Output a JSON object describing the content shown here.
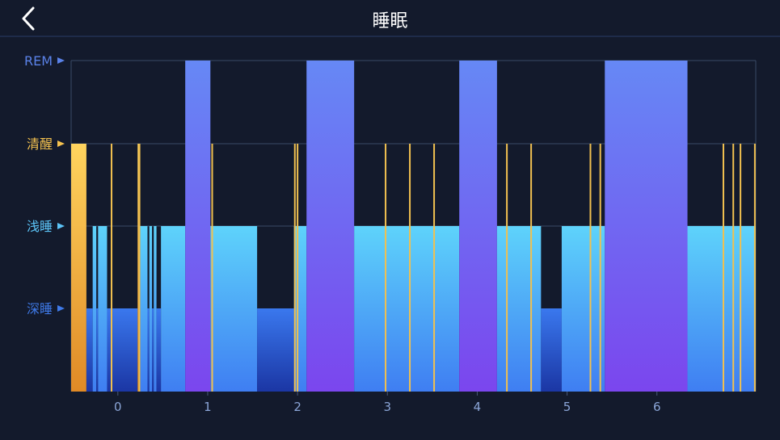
{
  "header": {
    "title": "睡眠",
    "back_icon": "chevron-left-icon"
  },
  "colors": {
    "background": "#131a2c",
    "awake": "#f5c24f",
    "rem": "#6a84f5",
    "light": "#5cc4f7",
    "deep": "#2f66e0",
    "grid": "#3a4a66"
  },
  "chart_data": {
    "type": "bar",
    "stage_levels": [
      {
        "name": "REM",
        "level": 4,
        "color": "#5a82e8"
      },
      {
        "name": "清醒",
        "level": 3,
        "color": "#f5c24f"
      },
      {
        "name": "浅睡",
        "level": 2,
        "color": "#5cc4f7"
      },
      {
        "name": "深睡",
        "level": 1,
        "color": "#3f7ae8"
      }
    ],
    "xlim": [
      -0.52,
      7.1
    ],
    "x_ticks": [
      0,
      1,
      2,
      3,
      4,
      5,
      6
    ],
    "segments": [
      {
        "start": -0.52,
        "end": -0.35,
        "stage": "awake"
      },
      {
        "start": -0.35,
        "end": -0.28,
        "stage": "deep"
      },
      {
        "start": -0.28,
        "end": -0.24,
        "stage": "light"
      },
      {
        "start": -0.24,
        "end": -0.22,
        "stage": "deep"
      },
      {
        "start": -0.22,
        "end": -0.12,
        "stage": "light"
      },
      {
        "start": -0.12,
        "end": -0.06,
        "stage": "deep"
      },
      {
        "start": -0.06,
        "end": 0.22,
        "stage": "deep"
      },
      {
        "start": 0.22,
        "end": 0.25,
        "stage": "awake"
      },
      {
        "start": 0.25,
        "end": 0.33,
        "stage": "light"
      },
      {
        "start": 0.33,
        "end": 0.35,
        "stage": "deep"
      },
      {
        "start": 0.35,
        "end": 0.38,
        "stage": "light"
      },
      {
        "start": 0.38,
        "end": 0.4,
        "stage": "deep"
      },
      {
        "start": 0.4,
        "end": 0.43,
        "stage": "light"
      },
      {
        "start": 0.43,
        "end": 0.48,
        "stage": "deep"
      },
      {
        "start": 0.48,
        "end": 0.51,
        "stage": "light"
      },
      {
        "start": 0.51,
        "end": 0.75,
        "stage": "light"
      },
      {
        "start": 0.75,
        "end": 1.03,
        "stage": "rem"
      },
      {
        "start": 1.03,
        "end": 1.55,
        "stage": "light"
      },
      {
        "start": 1.55,
        "end": 1.96,
        "stage": "deep"
      },
      {
        "start": 1.96,
        "end": 2.1,
        "stage": "light"
      },
      {
        "start": 2.1,
        "end": 2.63,
        "stage": "rem"
      },
      {
        "start": 2.63,
        "end": 3.8,
        "stage": "light"
      },
      {
        "start": 3.8,
        "end": 4.22,
        "stage": "rem"
      },
      {
        "start": 4.22,
        "end": 4.71,
        "stage": "light"
      },
      {
        "start": 4.71,
        "end": 4.94,
        "stage": "deep"
      },
      {
        "start": 4.94,
        "end": 5.42,
        "stage": "light"
      },
      {
        "start": 5.42,
        "end": 6.34,
        "stage": "rem"
      },
      {
        "start": 6.34,
        "end": 7.1,
        "stage": "light"
      }
    ],
    "awake_markers": [
      -0.07,
      0.24,
      1.05,
      1.97,
      2.0,
      2.98,
      3.25,
      3.52,
      4.33,
      4.6,
      5.26,
      5.37,
      6.74,
      6.85,
      6.93,
      7.09
    ]
  }
}
